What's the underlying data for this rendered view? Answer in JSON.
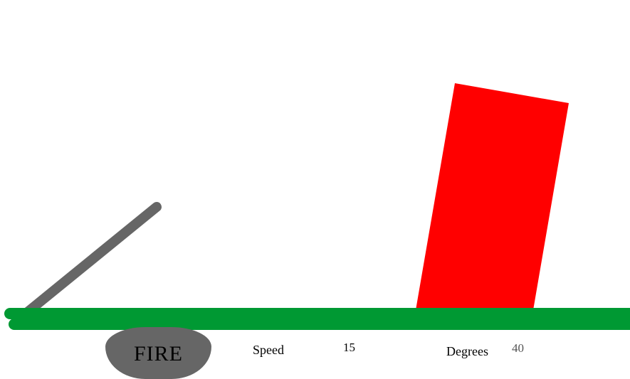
{
  "controls": {
    "fire_label": "FIRE",
    "speed_label": "Speed",
    "speed_value": "15",
    "degrees_label": "Degrees",
    "degrees_value": "40"
  },
  "colors": {
    "ground": "#009933",
    "cannon": "#666666",
    "target": "#ff0000",
    "fire_button": "#666666",
    "speed_value_text": "#000000",
    "degrees_value_text": "#555555"
  }
}
